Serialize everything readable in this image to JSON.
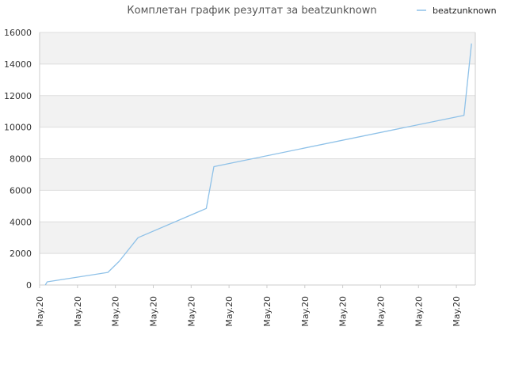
{
  "chart_data": {
    "type": "line",
    "title": "Комплетан график резултат за beatzunknown",
    "xlabel": "",
    "ylabel": "",
    "categories": [
      "May.20",
      "May.20",
      "May.20",
      "May.20",
      "May.20",
      "May.20",
      "May.20",
      "May.20",
      "May.20",
      "May.20",
      "May.20",
      "May.20"
    ],
    "yticks": [
      "0",
      "2000",
      "4000",
      "6000",
      "8000",
      "10000",
      "12000",
      "14000",
      "16000"
    ],
    "ylim": [
      0,
      16000
    ],
    "grid": "horizontal bands",
    "legend_position": "top-right",
    "series": [
      {
        "name": "beatzunknown",
        "color": "#8ec1e8",
        "x": [
          0.15,
          0.2,
          1.8,
          2.1,
          2.6,
          4.4,
          4.6,
          11.2,
          11.4
        ],
        "y": [
          0,
          200,
          800,
          1500,
          3000,
          4850,
          7500,
          10750,
          15300
        ]
      }
    ],
    "colors": {
      "band": "#f2f2f2",
      "grid": "#dddddd",
      "axis": "#cccccc"
    }
  }
}
